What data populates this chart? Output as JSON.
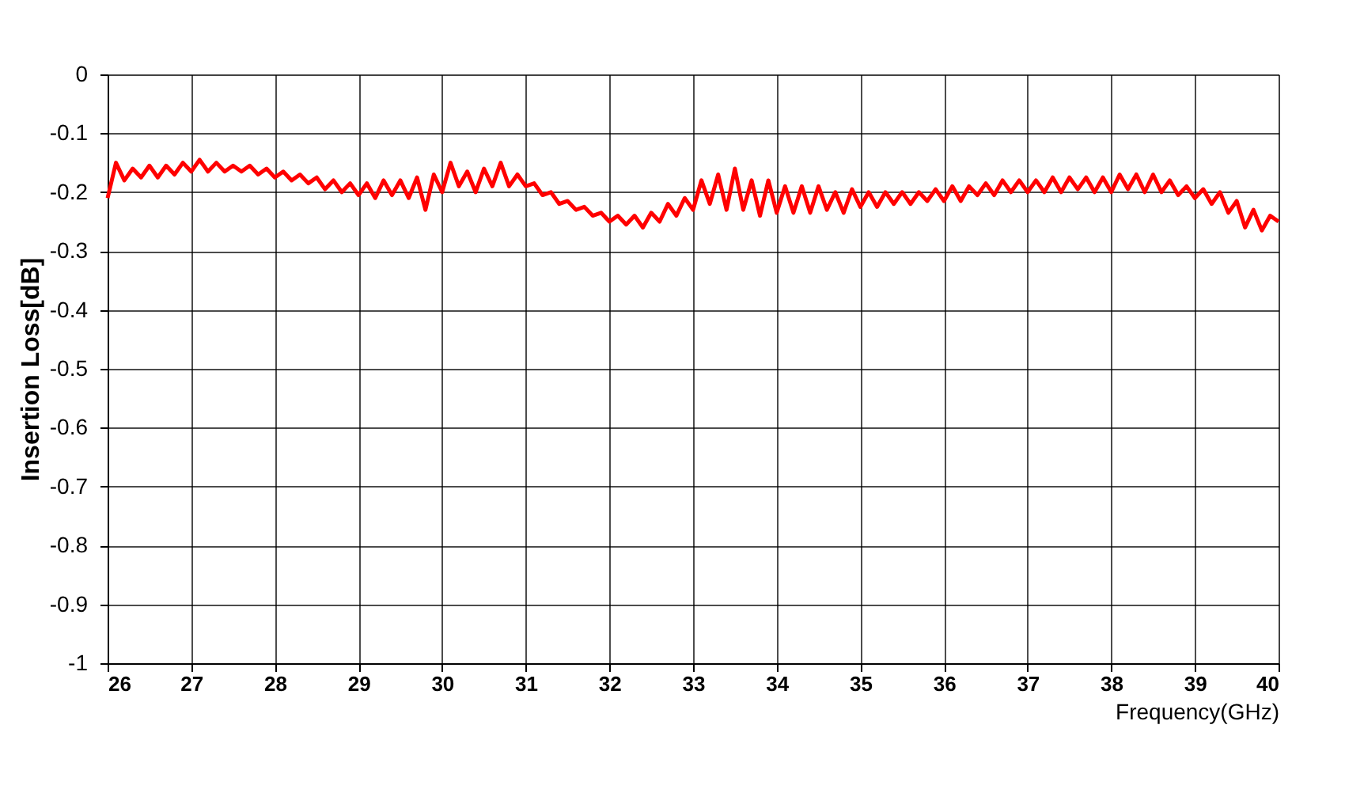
{
  "chart_data": {
    "type": "line",
    "xlabel": "Frequency(GHz)",
    "ylabel": "Insertion Loss[dB]",
    "xlim": [
      26,
      40
    ],
    "xticks": [
      26,
      27,
      28,
      29,
      30,
      31,
      32,
      33,
      34,
      35,
      36,
      37,
      38,
      39,
      40
    ],
    "ylim": [
      -1,
      0
    ],
    "yticks": [
      0,
      -0.1,
      -0.2,
      -0.3,
      -0.4,
      -0.5,
      -0.6,
      -0.7,
      -0.8,
      -0.9,
      -1
    ],
    "grid": true,
    "legend": false,
    "marker": "none",
    "line_style": "solid",
    "x": [
      26.0,
      26.1,
      26.2,
      26.3,
      26.4,
      26.5,
      26.6,
      26.7,
      26.8,
      26.9,
      27.0,
      27.1,
      27.2,
      27.3,
      27.4,
      27.5,
      27.6,
      27.7,
      27.8,
      27.9,
      28.0,
      28.1,
      28.2,
      28.3,
      28.4,
      28.5,
      28.6,
      28.7,
      28.8,
      28.9,
      29.0,
      29.1,
      29.2,
      29.3,
      29.4,
      29.5,
      29.6,
      29.7,
      29.8,
      29.9,
      30.0,
      30.1,
      30.2,
      30.3,
      30.4,
      30.5,
      30.6,
      30.7,
      30.8,
      30.9,
      31.0,
      31.1,
      31.2,
      31.3,
      31.4,
      31.5,
      31.6,
      31.7,
      31.8,
      31.9,
      32.0,
      32.1,
      32.2,
      32.3,
      32.4,
      32.5,
      32.6,
      32.7,
      32.8,
      32.9,
      33.0,
      33.1,
      33.2,
      33.3,
      33.4,
      33.5,
      33.6,
      33.7,
      33.8,
      33.9,
      34.0,
      34.1,
      34.2,
      34.3,
      34.4,
      34.5,
      34.6,
      34.7,
      34.8,
      34.9,
      35.0,
      35.1,
      35.2,
      35.3,
      35.4,
      35.5,
      35.6,
      35.7,
      35.8,
      35.9,
      36.0,
      36.1,
      36.2,
      36.3,
      36.4,
      36.5,
      36.6,
      36.7,
      36.8,
      36.9,
      37.0,
      37.1,
      37.2,
      37.3,
      37.4,
      37.5,
      37.6,
      37.7,
      37.8,
      37.9,
      38.0,
      38.1,
      38.2,
      38.3,
      38.4,
      38.5,
      38.6,
      38.7,
      38.8,
      38.9,
      39.0,
      39.1,
      39.2,
      39.3,
      39.4,
      39.5,
      39.6,
      39.7,
      39.8,
      39.9,
      40.0
    ],
    "series": [
      {
        "color": "#ff0000",
        "values": [
          -0.21,
          -0.15,
          -0.18,
          -0.16,
          -0.175,
          -0.155,
          -0.175,
          -0.155,
          -0.17,
          -0.15,
          -0.165,
          -0.145,
          -0.165,
          -0.15,
          -0.165,
          -0.155,
          -0.165,
          -0.155,
          -0.17,
          -0.16,
          -0.175,
          -0.165,
          -0.18,
          -0.17,
          -0.185,
          -0.175,
          -0.195,
          -0.18,
          -0.2,
          -0.185,
          -0.205,
          -0.185,
          -0.21,
          -0.18,
          -0.205,
          -0.18,
          -0.21,
          -0.175,
          -0.23,
          -0.17,
          -0.2,
          -0.15,
          -0.19,
          -0.165,
          -0.2,
          -0.16,
          -0.19,
          -0.15,
          -0.19,
          -0.17,
          -0.19,
          -0.185,
          -0.205,
          -0.2,
          -0.22,
          -0.215,
          -0.23,
          -0.225,
          -0.24,
          -0.235,
          -0.25,
          -0.24,
          -0.255,
          -0.24,
          -0.26,
          -0.235,
          -0.25,
          -0.22,
          -0.24,
          -0.21,
          -0.23,
          -0.18,
          -0.22,
          -0.17,
          -0.23,
          -0.16,
          -0.23,
          -0.18,
          -0.24,
          -0.18,
          -0.235,
          -0.19,
          -0.235,
          -0.19,
          -0.235,
          -0.19,
          -0.23,
          -0.2,
          -0.235,
          -0.195,
          -0.225,
          -0.2,
          -0.225,
          -0.2,
          -0.22,
          -0.2,
          -0.22,
          -0.2,
          -0.215,
          -0.195,
          -0.215,
          -0.19,
          -0.215,
          -0.19,
          -0.205,
          -0.185,
          -0.205,
          -0.18,
          -0.2,
          -0.18,
          -0.2,
          -0.18,
          -0.2,
          -0.175,
          -0.2,
          -0.175,
          -0.195,
          -0.175,
          -0.2,
          -0.175,
          -0.2,
          -0.17,
          -0.195,
          -0.17,
          -0.2,
          -0.17,
          -0.2,
          -0.18,
          -0.205,
          -0.19,
          -0.21,
          -0.195,
          -0.22,
          -0.2,
          -0.235,
          -0.215,
          -0.26,
          -0.23,
          -0.265,
          -0.24,
          -0.25
        ]
      }
    ]
  }
}
